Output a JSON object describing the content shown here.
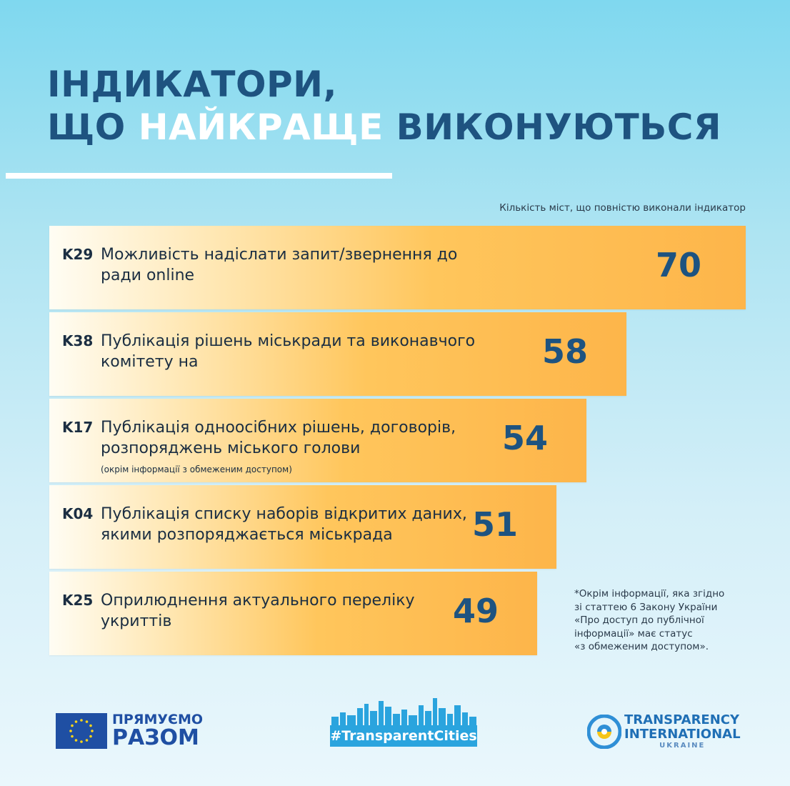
{
  "title": {
    "line1": "ІНДИКАТОРИ,",
    "line2_pre": "ЩО ",
    "line2_highlight": "НАЙКРАЩЕ",
    "line2_post": " ВИКОНУЮТЬСЯ"
  },
  "subtitle": "Кількість міст, що повністю виконали індикатор",
  "colors": {
    "navy": "#1e5380",
    "bar_end": "#fdb54a",
    "bar_start": "#fffdf4"
  },
  "chart_data": {
    "type": "bar",
    "orientation": "horizontal",
    "title": "ІНДИКАТОРИ, ЩО НАЙКРАЩЕ ВИКОНУЮТЬСЯ",
    "xlabel": "Кількість міст, що повністю виконали індикатор",
    "ylabel": "",
    "xlim": [
      0,
      70
    ],
    "categories": [
      "K29",
      "K38",
      "K17",
      "K04",
      "K25"
    ],
    "labels": [
      "Можливість надіслати запит/звернення до ради online",
      "Публікація рішень міськради та виконавчого комітету на",
      "Публікація одноосібних рішень, договорів, розпоряджень міського голови",
      "Публікація списку наборів відкритих даних, якими розпоряджається міськрада",
      "Оприлюднення актуального переліку укриттів"
    ],
    "notes": [
      "",
      "",
      "(окрім інформації з обмеженим доступом)",
      "",
      ""
    ],
    "values": [
      70,
      58,
      54,
      51,
      49
    ]
  },
  "footnote": "*Окрім інформації, яка згідно\nзі статтею 6 Закону України\n«Про доступ до публічної\nінформації» має статус\n«з обмеженим доступом».",
  "logos": {
    "eu_line1": "ПРЯМУЄМО",
    "eu_line2": "РАЗОМ",
    "tc_tag": "#TransparentCities",
    "ti_line1": "TRANSPARENCY",
    "ti_line2": "INTERNATIONAL",
    "ti_line3": "UKRAINE"
  }
}
